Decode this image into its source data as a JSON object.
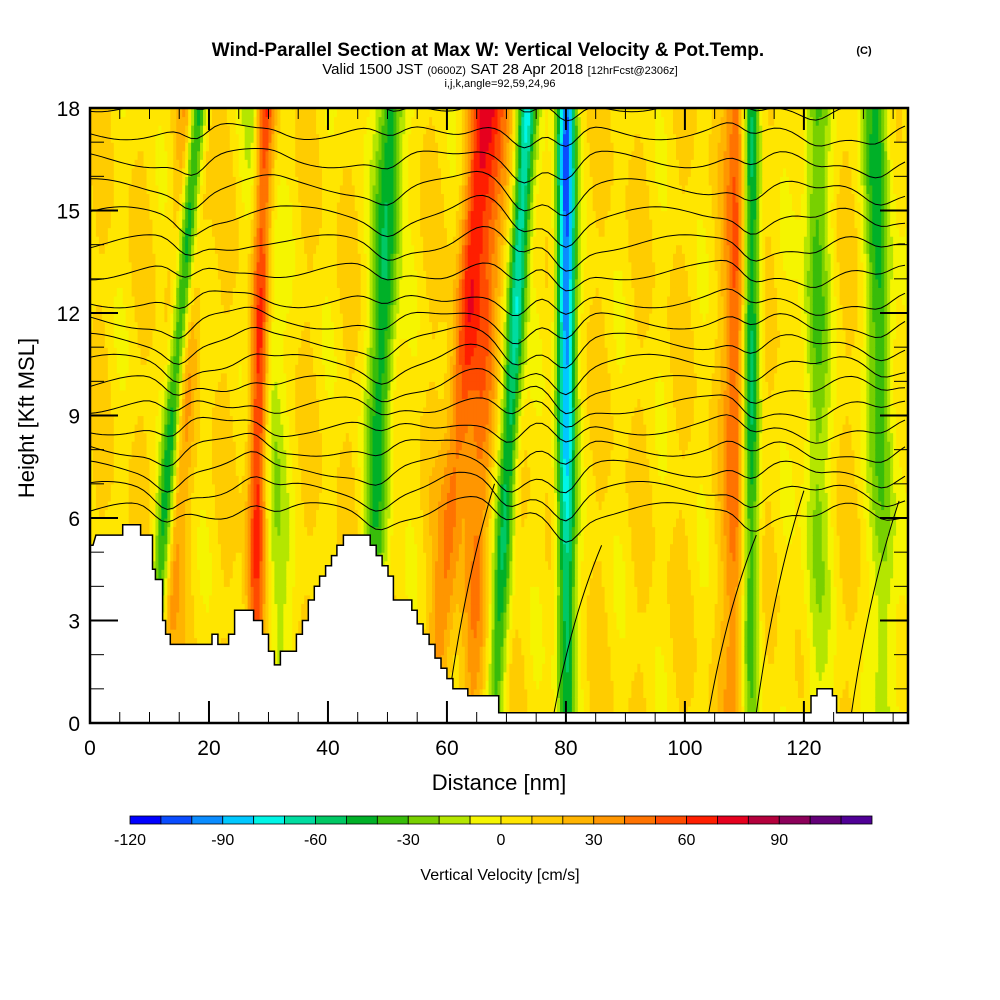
{
  "chart_data": {
    "type": "heatmap",
    "title": "Wind-Parallel Section at Max W: Vertical Velocity & Pot.Temp.",
    "title_suffix": "(C)",
    "subtitle_parts": [
      "Valid 1500 JST",
      "(0600Z)",
      "SAT 28 Apr 2018",
      "[12hrFcst@2306z]"
    ],
    "subtitle2": "i,j,k,angle=92,59,24,96",
    "xlabel": "Distance [nm]",
    "ylabel": "Height [Kft MSL]",
    "xlim": [
      0,
      137.5
    ],
    "ylim": [
      0,
      18
    ],
    "x_ticks": [
      0,
      20,
      40,
      60,
      80,
      100,
      120
    ],
    "x_tick_labels": [
      "0",
      "20",
      "40",
      "60",
      "80",
      "100",
      "120"
    ],
    "x_minor_step": 5,
    "y_ticks": [
      0,
      3,
      6,
      9,
      12,
      15,
      18
    ],
    "y_tick_labels": [
      "0",
      "3",
      "6",
      "9",
      "12",
      "15",
      "18"
    ],
    "y_minor_step": 1,
    "colorbar": {
      "label": "Vertical Velocity [cm/s]",
      "min": -120,
      "max": 120,
      "step": 10,
      "tick_values": [
        -120,
        -90,
        -60,
        -30,
        0,
        30,
        60,
        90
      ],
      "tick_labels": [
        "-120",
        "-90",
        "-60",
        "-30",
        "0",
        "30",
        "60",
        "90"
      ],
      "colors": [
        "#0000ff",
        "#0a4cff",
        "#0a8cff",
        "#00c8ff",
        "#00f5e6",
        "#00dca0",
        "#00c864",
        "#00b028",
        "#38bc0a",
        "#78d000",
        "#b4e600",
        "#f5f500",
        "#ffe600",
        "#ffcc00",
        "#ffb400",
        "#ff9600",
        "#ff7300",
        "#ff4b00",
        "#ff1e00",
        "#e6001e",
        "#b4003c",
        "#8c005a",
        "#640078",
        "#500096"
      ],
      "placement": "bottom"
    },
    "terrain": {
      "description": "Model terrain cross-section (white) along distance",
      "x_nm": [
        0,
        0.5,
        1,
        5.5,
        5.5,
        8.5,
        8.5,
        10.5,
        10.5,
        11,
        11,
        12.2,
        12.2,
        12.7,
        12.7,
        13.5,
        13.5,
        20.5,
        20.5,
        21.5,
        21.5,
        23.3,
        23.3,
        24.3,
        24.3,
        27.5,
        27.5,
        29,
        29,
        30,
        30,
        31,
        31,
        32,
        32,
        34.7,
        34.7,
        35.7,
        35.7,
        36.7,
        36.7,
        37.7,
        37.7,
        38.6,
        38.6,
        39.6,
        39.6,
        40.6,
        40.6,
        41.5,
        41.5,
        42.6,
        42.6,
        43.5,
        43.5,
        47.1,
        47.1,
        48.1,
        48.1,
        49.1,
        49.1,
        50.1,
        50.1,
        51.0,
        51.0,
        54.1,
        54.1,
        55.0,
        55.0,
        56.0,
        56.0,
        57.0,
        57.0,
        58.0,
        58.0,
        59.0,
        59.0,
        60.0,
        60.0,
        61.0,
        61.0,
        63.5,
        63.5,
        68.7,
        68.7,
        121.2,
        121.2,
        122.2,
        122.2,
        124.8,
        124.8,
        125.5,
        125.5,
        137.5
      ],
      "z_kft": [
        5.2,
        5.2,
        5.5,
        5.5,
        5.8,
        5.8,
        5.5,
        5.5,
        4.5,
        4.5,
        4.2,
        4.2,
        3.0,
        3.0,
        2.6,
        2.6,
        2.3,
        2.3,
        2.6,
        2.6,
        2.3,
        2.3,
        2.6,
        2.6,
        3.3,
        3.3,
        3.0,
        3.0,
        2.6,
        2.6,
        2.1,
        2.1,
        1.7,
        1.7,
        2.1,
        2.1,
        2.6,
        2.6,
        3.0,
        3.0,
        3.6,
        3.6,
        4.0,
        4.0,
        4.3,
        4.3,
        4.6,
        4.6,
        4.9,
        4.9,
        5.2,
        5.2,
        5.5,
        5.5,
        5.5,
        5.5,
        5.2,
        5.2,
        4.9,
        4.9,
        4.6,
        4.6,
        4.3,
        4.3,
        3.6,
        3.6,
        3.3,
        3.3,
        2.9,
        2.9,
        2.6,
        2.6,
        2.3,
        2.3,
        1.9,
        1.9,
        1.6,
        1.6,
        1.3,
        1.3,
        1.0,
        1.0,
        0.8,
        0.8,
        0.3,
        0.3,
        0.8,
        0.8,
        1.0,
        1.0,
        0.8,
        0.8,
        0.3,
        0.3
      ]
    },
    "vertical_velocity_bands": {
      "description": "Approximate dominant vertical velocity (cm/s) bands tilted with height; x in nm at the surface, lean in nm per kft",
      "updrafts": [
        {
          "x_nm": 11.5,
          "peak": 60,
          "lean": 0.35
        },
        {
          "x_nm": 27.5,
          "peak": 80,
          "lean": 0.1
        },
        {
          "x_nm": 58,
          "peak": 50,
          "lean": 0.45
        },
        {
          "x_nm": 64,
          "peak": 40,
          "lean": 0.25
        },
        {
          "x_nm": 108.5,
          "peak": 55,
          "lean": 0.05
        }
      ],
      "downdrafts": [
        {
          "x_nm": 10,
          "peak": -110,
          "lean": 0.45
        },
        {
          "x_nm": 32,
          "peak": -40,
          "lean": -0.2
        },
        {
          "x_nm": 47,
          "peak": -60,
          "lean": 0.2
        },
        {
          "x_nm": 68,
          "peak": -80,
          "lean": 0.3
        },
        {
          "x_nm": 80,
          "peak": -110,
          "lean": 0.0
        },
        {
          "x_nm": 111,
          "peak": -80,
          "lean": 0.0
        },
        {
          "x_nm": 122,
          "peak": -40,
          "lean": 0.0
        },
        {
          "x_nm": 134,
          "peak": -50,
          "lean": -0.1
        }
      ]
    },
    "contours": {
      "field": "Potential Temperature",
      "levels_count": 20,
      "note": "Black isentropes, nearly horizontal aloft, perturbed over updrafts/downdrafts"
    }
  }
}
